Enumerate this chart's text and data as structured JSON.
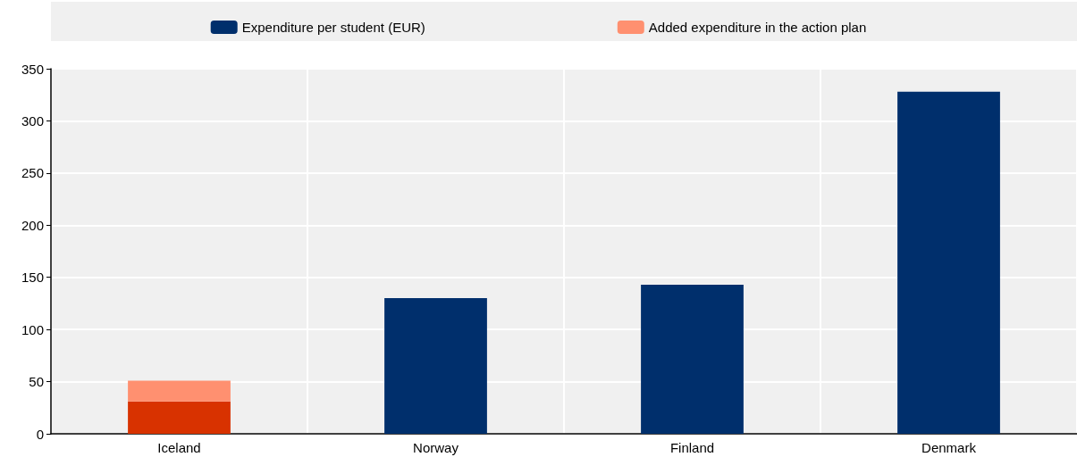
{
  "chart_data": {
    "type": "bar",
    "stacked": true,
    "categories": [
      "Iceland",
      "Norway",
      "Finland",
      "Denmark"
    ],
    "series": [
      {
        "name": "Expenditure per student (EUR)",
        "color": "#002f6c",
        "colors": [
          "#d83200",
          "#002f6c",
          "#002f6c",
          "#002f6c"
        ],
        "values": [
          31,
          130,
          143,
          328
        ]
      },
      {
        "name": "Added expenditure in the action plan",
        "color": "#ff9070",
        "values": [
          20,
          null,
          null,
          null
        ]
      }
    ],
    "ylim": [
      0,
      350
    ],
    "yticks": [
      0,
      50,
      100,
      150,
      200,
      250,
      300,
      350
    ],
    "grid": true,
    "legend": "top"
  }
}
